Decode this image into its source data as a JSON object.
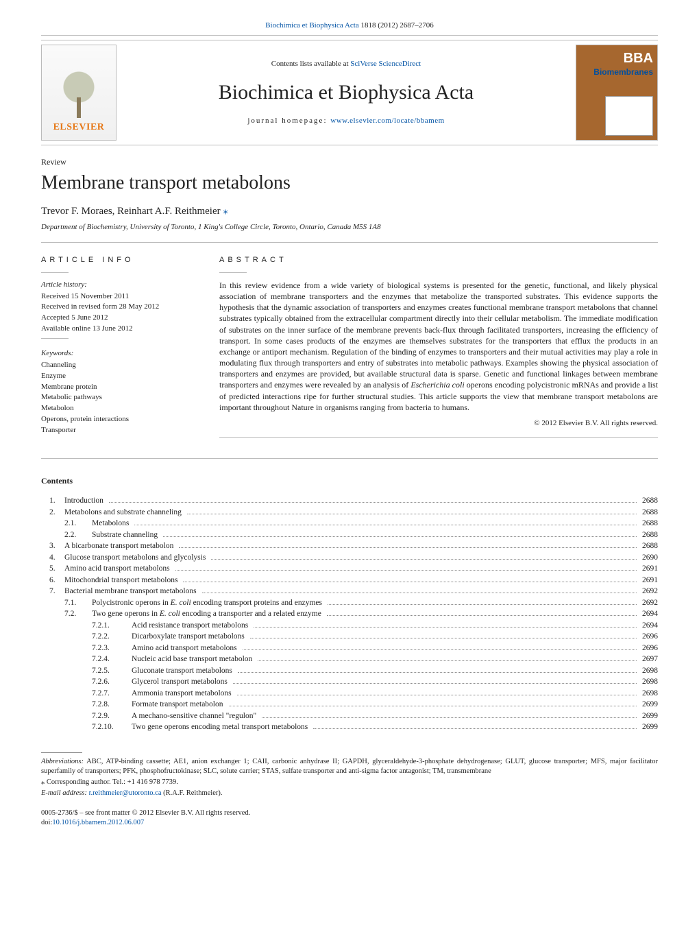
{
  "top_citation": {
    "journal": "Biochimica et Biophysica Acta",
    "vol": "1818 (2012) 2687–2706"
  },
  "masthead": {
    "contents_at": "Contents lists available at",
    "sciverse": "SciVerse ScienceDirect",
    "journal_title": "Biochimica et Biophysica Acta",
    "homepage_label": "journal homepage:",
    "homepage_url": "www.elsevier.com/locate/bbamem",
    "publisher": "ELSEVIER",
    "cover_brand": "BBA",
    "cover_sub": "Biomembranes"
  },
  "article": {
    "type": "Review",
    "title": "Membrane transport metabolons",
    "authors": "Trevor F. Moraes, Reinhart A.F. Reithmeier",
    "star": "⁎",
    "affiliation": "Department of Biochemistry, University of Toronto, 1 King's College Circle, Toronto, Ontario, Canada M5S 1A8"
  },
  "info": {
    "heading": "ARTICLE INFO",
    "history_label": "Article history:",
    "history": [
      "Received 15 November 2011",
      "Received in revised form 28 May 2012",
      "Accepted 5 June 2012",
      "Available online 13 June 2012"
    ],
    "keywords_label": "Keywords:",
    "keywords": [
      "Channeling",
      "Enzyme",
      "Membrane protein",
      "Metabolic pathways",
      "Metabolon",
      "Operons, protein interactions",
      "Transporter"
    ]
  },
  "abstract": {
    "heading": "ABSTRACT",
    "text": "In this review evidence from a wide variety of biological systems is presented for the genetic, functional, and likely physical association of membrane transporters and the enzymes that metabolize the transported substrates. This evidence supports the hypothesis that the dynamic association of transporters and enzymes creates functional membrane transport metabolons that channel substrates typically obtained from the extracellular compartment directly into their cellular metabolism. The immediate modification of substrates on the inner surface of the membrane prevents back-flux through facilitated transporters, increasing the efficiency of transport. In some cases products of the enzymes are themselves substrates for the transporters that efflux the products in an exchange or antiport mechanism. Regulation of the binding of enzymes to transporters and their mutual activities may play a role in modulating flux through transporters and entry of substrates into metabolic pathways. Examples showing the physical association of transporters and enzymes are provided, but available structural data is sparse. Genetic and functional linkages between membrane transporters and enzymes were revealed by an analysis of Escherichia coli operons encoding polycistronic mRNAs and provide a list of predicted interactions ripe for further structural studies. This article supports the view that membrane transport metabolons are important throughout Nature in organisms ranging from bacteria to humans.",
    "copyright": "© 2012 Elsevier B.V. All rights reserved."
  },
  "contents_label": "Contents",
  "toc": [
    {
      "ind": 1,
      "num": "1.",
      "title": "Introduction",
      "page": "2688"
    },
    {
      "ind": 1,
      "num": "2.",
      "title": "Metabolons and substrate channeling",
      "page": "2688"
    },
    {
      "ind": 2,
      "num": "2.1.",
      "title": "Metabolons",
      "page": "2688"
    },
    {
      "ind": 2,
      "num": "2.2.",
      "title": "Substrate channeling",
      "page": "2688"
    },
    {
      "ind": 1,
      "num": "3.",
      "title": "A bicarbonate transport metabolon",
      "page": "2688"
    },
    {
      "ind": 1,
      "num": "4.",
      "title": "Glucose transport metabolons and glycolysis",
      "page": "2690"
    },
    {
      "ind": 1,
      "num": "5.",
      "title": "Amino acid transport metabolons",
      "page": "2691"
    },
    {
      "ind": 1,
      "num": "6.",
      "title": "Mitochondrial transport metabolons",
      "page": "2691"
    },
    {
      "ind": 1,
      "num": "7.",
      "title": "Bacterial membrane transport metabolons",
      "page": "2692"
    },
    {
      "ind": 2,
      "num": "7.1.",
      "title": "Polycistronic operons in <i>E. coli</i> encoding transport proteins and enzymes",
      "page": "2692"
    },
    {
      "ind": 2,
      "num": "7.2.",
      "title": "Two gene operons in <i>E. coli</i> encoding a transporter and a related enzyme",
      "page": "2694"
    },
    {
      "ind": 3,
      "num": "7.2.1.",
      "title": "Acid resistance transport metabolons",
      "page": "2694"
    },
    {
      "ind": 3,
      "num": "7.2.2.",
      "title": "Dicarboxylate transport metabolons",
      "page": "2696"
    },
    {
      "ind": 3,
      "num": "7.2.3.",
      "title": "Amino acid transport metabolons",
      "page": "2696"
    },
    {
      "ind": 3,
      "num": "7.2.4.",
      "title": "Nucleic acid base transport metabolon",
      "page": "2697"
    },
    {
      "ind": 3,
      "num": "7.2.5.",
      "title": "Gluconate transport metabolons",
      "page": "2698"
    },
    {
      "ind": 3,
      "num": "7.2.6.",
      "title": "Glycerol transport metabolons",
      "page": "2698"
    },
    {
      "ind": 3,
      "num": "7.2.7.",
      "title": "Ammonia transport metabolons",
      "page": "2698"
    },
    {
      "ind": 3,
      "num": "7.2.8.",
      "title": "Formate transport metabolon",
      "page": "2699"
    },
    {
      "ind": 3,
      "num": "7.2.9.",
      "title": "A mechano-sensitive channel \"regulon\"",
      "page": "2699"
    },
    {
      "ind": 3,
      "num": "7.2.10.",
      "title": "Two gene operons encoding metal transport metabolons",
      "page": "2699"
    }
  ],
  "footnotes": {
    "abbrev_label": "Abbreviations:",
    "abbrev_text": " ABC, ATP-binding cassette; AE1, anion exchanger 1; CAII, carbonic anhydrase II; GAPDH, glyceraldehyde-3-phosphate dehydrogenase; GLUT, glucose transporter; MFS, major facilitator superfamily of transporters; PFK, phosphofructokinase; SLC, solute carrier; STAS, sulfate transporter and anti-sigma factor antagonist; TM, transmembrane",
    "corr": "⁎ Corresponding author. Tel.: +1 416 978 7739.",
    "email_label": "E-mail address:",
    "email": "r.reithmeier@utoronto.ca",
    "email_who": " (R.A.F. Reithmeier).",
    "front_matter": "0005-2736/$ – see front matter © 2012 Elsevier B.V. All rights reserved.",
    "doi_label": "doi:",
    "doi": "10.1016/j.bbamem.2012.06.007"
  }
}
